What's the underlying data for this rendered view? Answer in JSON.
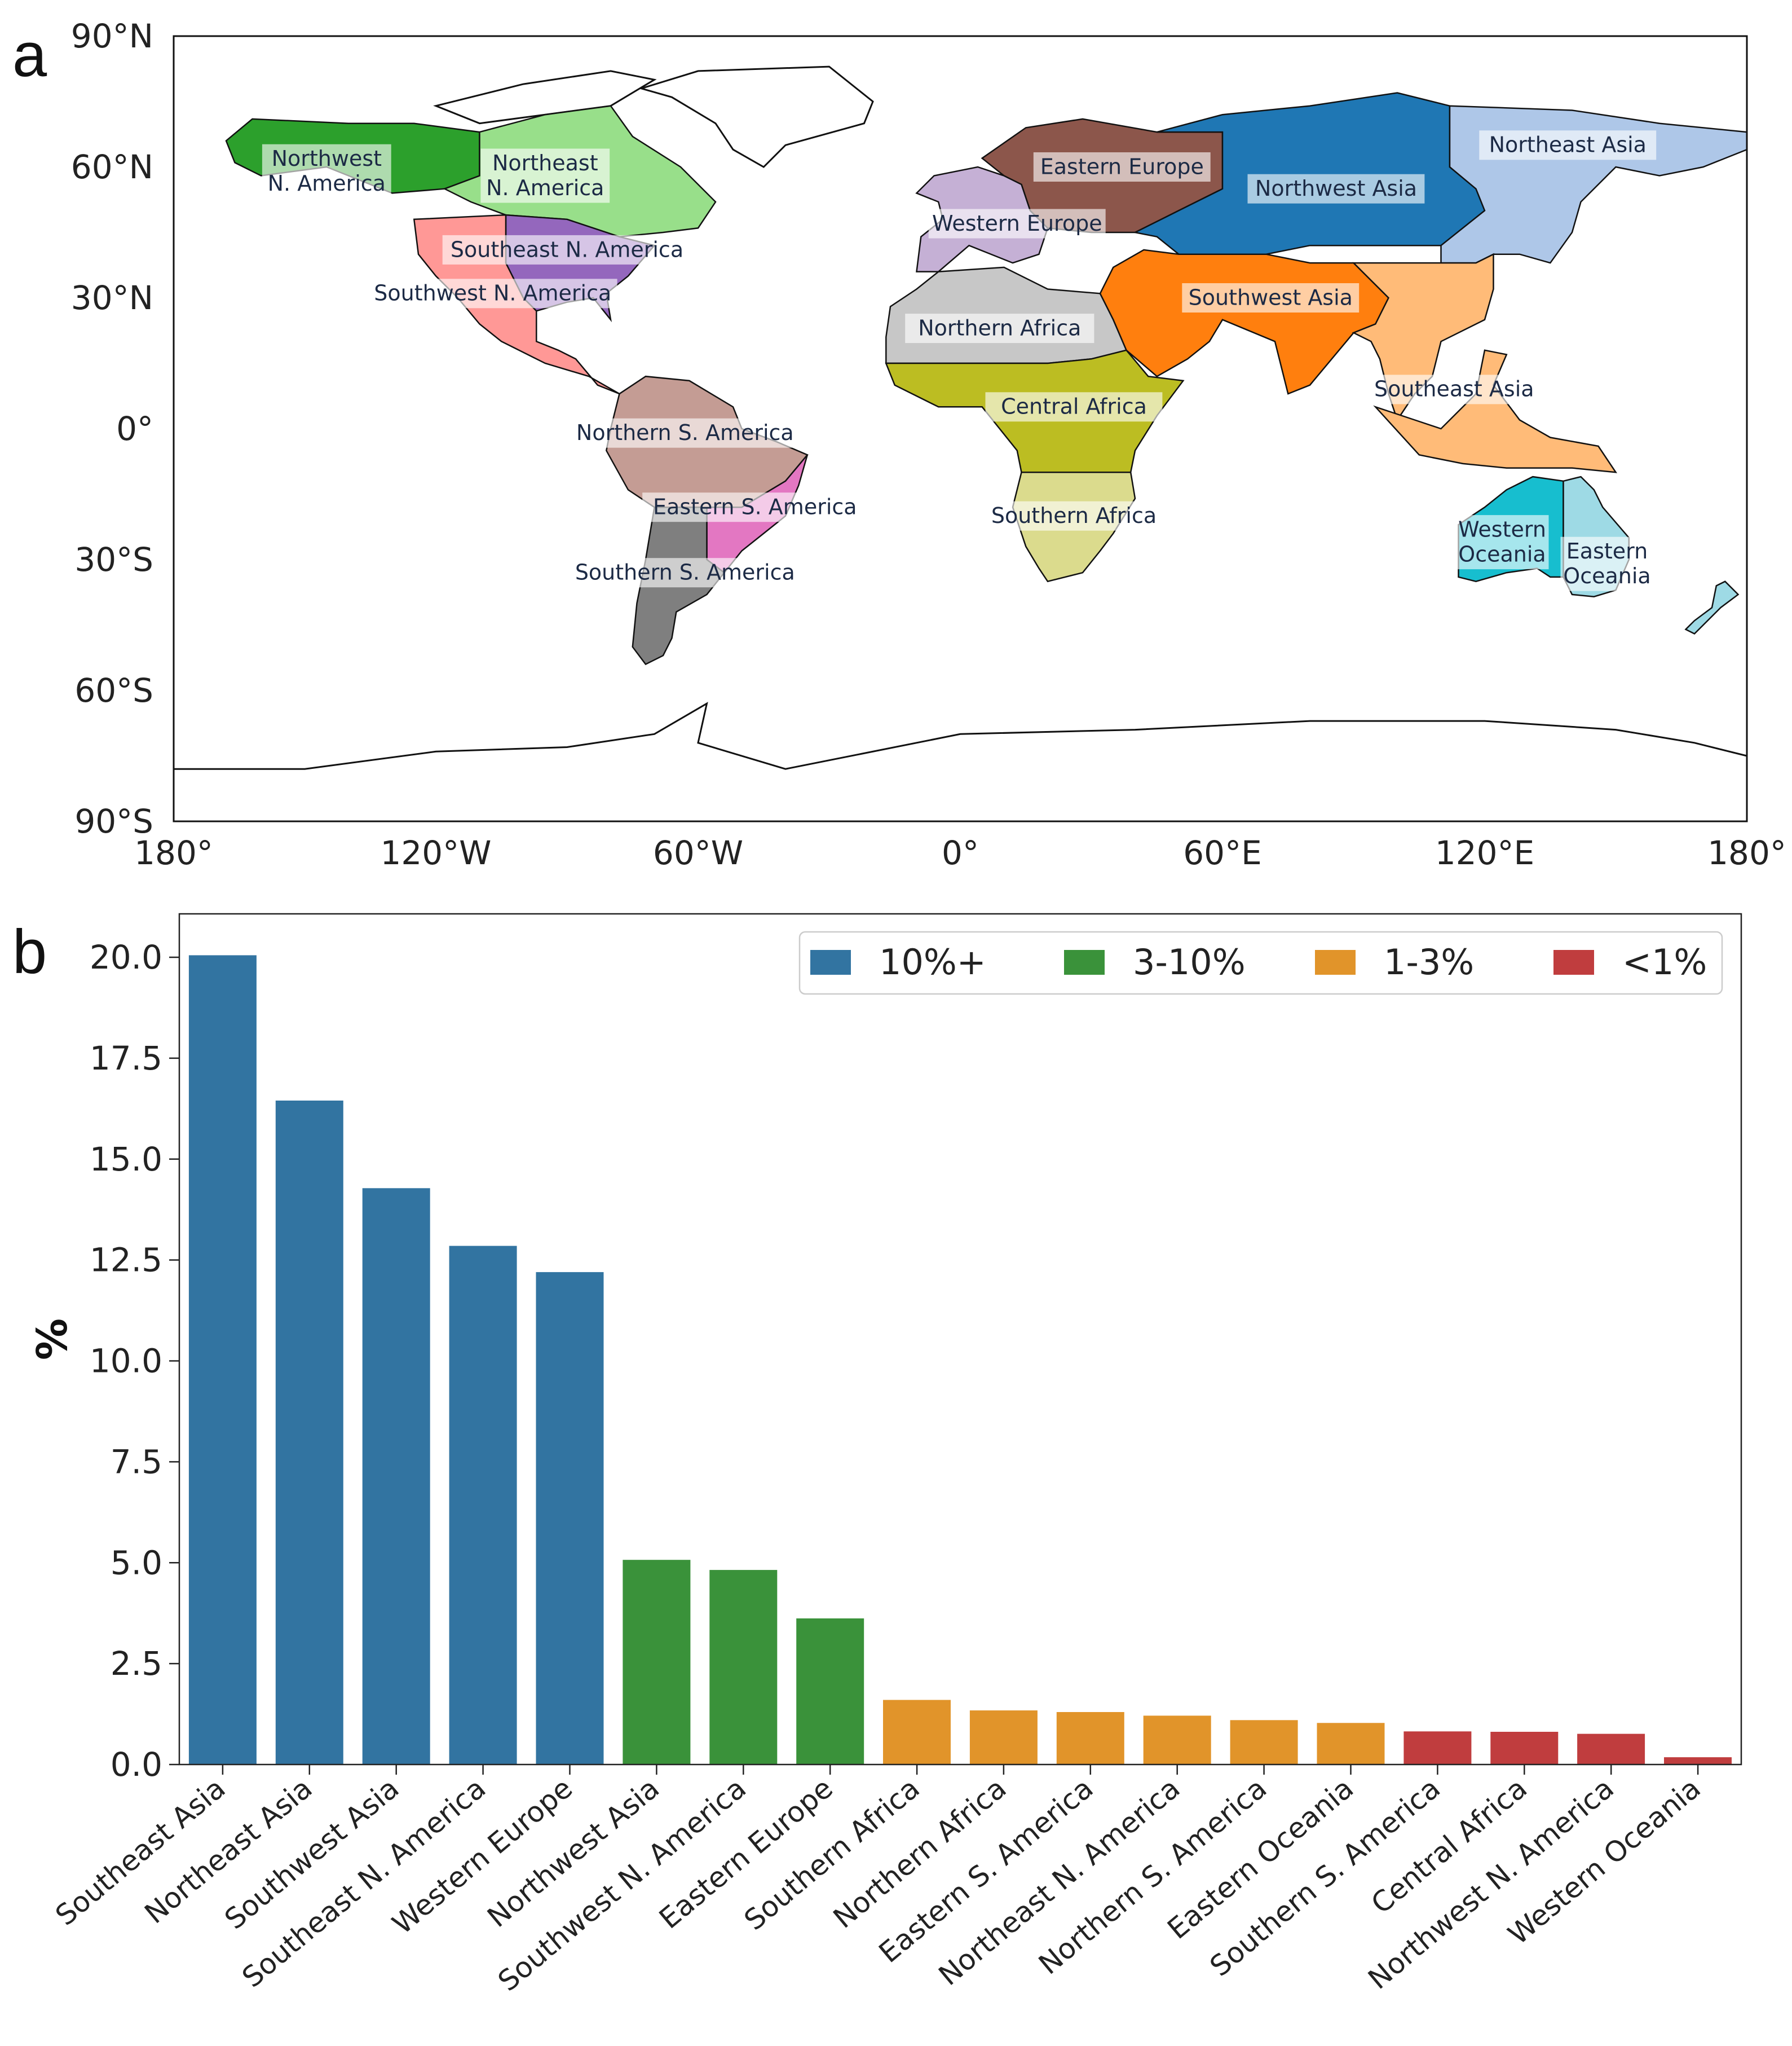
{
  "panel_a": {
    "letter": "a",
    "lat_ticks": [
      "90°N",
      "60°N",
      "30°N",
      "0°",
      "30°S",
      "60°S",
      "90°S"
    ],
    "lon_ticks": [
      "180°",
      "120°W",
      "60°W",
      "0°",
      "60°E",
      "120°E",
      "180°"
    ],
    "regions": [
      {
        "name": "Northwest N. America",
        "lines": [
          "Northwest",
          "N. America"
        ],
        "color": "#2ca02c"
      },
      {
        "name": "Northeast N. America",
        "lines": [
          "Northeast",
          "N. America"
        ],
        "color": "#98df8a"
      },
      {
        "name": "Southeast N. America",
        "lines": [
          "Southeast N. America"
        ],
        "color": "#9467bd"
      },
      {
        "name": "Southwest N. America",
        "lines": [
          "Southwest N. America"
        ],
        "color": "#ff9896"
      },
      {
        "name": "Northern S. America",
        "lines": [
          "Northern S. America"
        ],
        "color": "#c49c94"
      },
      {
        "name": "Eastern S. America",
        "lines": [
          "Eastern S. America"
        ],
        "color": "#e377c2"
      },
      {
        "name": "Southern S. America",
        "lines": [
          "Southern S. America"
        ],
        "color": "#7f7f7f"
      },
      {
        "name": "Western Europe",
        "lines": [
          "Western Europe"
        ],
        "color": "#c5b0d5"
      },
      {
        "name": "Eastern Europe",
        "lines": [
          "Eastern Europe"
        ],
        "color": "#8c564b"
      },
      {
        "name": "Northern Africa",
        "lines": [
          "Northern Africa"
        ],
        "color": "#c7c7c7"
      },
      {
        "name": "Central Africa",
        "lines": [
          "Central Africa"
        ],
        "color": "#bcbd22"
      },
      {
        "name": "Southern Africa",
        "lines": [
          "Southern Africa"
        ],
        "color": "#dbdb8d"
      },
      {
        "name": "Northwest Asia",
        "lines": [
          "Northwest Asia"
        ],
        "color": "#1f77b4"
      },
      {
        "name": "Northeast Asia",
        "lines": [
          "Northeast Asia"
        ],
        "color": "#aec7e8"
      },
      {
        "name": "Southwest Asia",
        "lines": [
          "Southwest Asia"
        ],
        "color": "#ff7f0e"
      },
      {
        "name": "Southeast Asia",
        "lines": [
          "Southeast Asia"
        ],
        "color": "#ffbb78"
      },
      {
        "name": "Western Oceania",
        "lines": [
          "Western",
          "Oceania"
        ],
        "color": "#17becf"
      },
      {
        "name": "Eastern Oceania",
        "lines": [
          "Eastern",
          "Oceania"
        ],
        "color": "#9edae5"
      }
    ]
  },
  "panel_b": {
    "letter": "b"
  },
  "chart_data": {
    "type": "bar",
    "title": "",
    "xlabel": "",
    "ylabel": "%",
    "ylim": [
      0,
      21
    ],
    "yticks": [
      "0.0",
      "2.5",
      "5.0",
      "7.5",
      "10.0",
      "12.5",
      "15.0",
      "17.5",
      "20.0"
    ],
    "categories": [
      "Southeast Asia",
      "Northeast Asia",
      "Southwest Asia",
      "Southeast N. America",
      "Western Europe",
      "Northwest Asia",
      "Southwest N. America",
      "Eastern Europe",
      "Southern Africa",
      "Northern Africa",
      "Eastern S. America",
      "Northeast N. America",
      "Northern S. America",
      "Eastern Oceania",
      "Southern S. America",
      "Central Africa",
      "Northwest N. America",
      "Western Oceania"
    ],
    "values": [
      20.05,
      16.45,
      14.28,
      12.85,
      12.2,
      5.07,
      4.82,
      3.62,
      1.6,
      1.34,
      1.3,
      1.21,
      1.1,
      1.03,
      0.82,
      0.81,
      0.76,
      0.18
    ],
    "groups": [
      "10%+",
      "10%+",
      "10%+",
      "10%+",
      "10%+",
      "3-10%",
      "3-10%",
      "3-10%",
      "1-3%",
      "1-3%",
      "1-3%",
      "1-3%",
      "1-3%",
      "1-3%",
      "<1%",
      "<1%",
      "<1%",
      "<1%"
    ],
    "legend": [
      {
        "label": "10%+",
        "color": "#3274a1"
      },
      {
        "label": "3-10%",
        "color": "#3a923a"
      },
      {
        "label": "1-3%",
        "color": "#e1942a"
      },
      {
        "label": "<1%",
        "color": "#c03d3e"
      }
    ],
    "legend_position": "top-right"
  }
}
